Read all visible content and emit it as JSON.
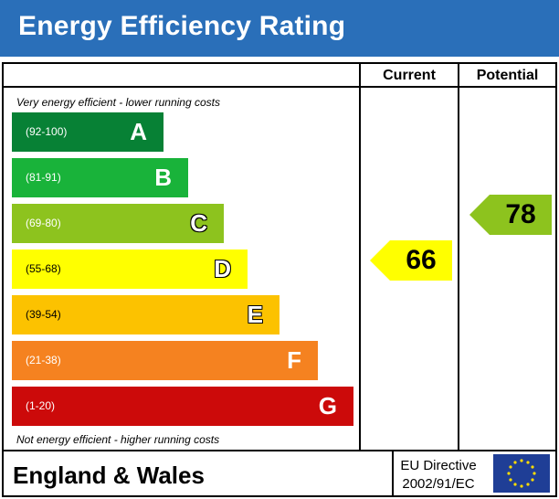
{
  "header": {
    "title": "Energy Efficiency Rating"
  },
  "columns": {
    "current": "Current",
    "potential": "Potential"
  },
  "notes": {
    "top": "Very energy efficient - lower running costs",
    "bottom": "Not energy efficient - higher running costs"
  },
  "bands": [
    {
      "letter": "A",
      "range": "(92-100)",
      "color": "#078135"
    },
    {
      "letter": "B",
      "range": "(81-91)",
      "color": "#19b33a"
    },
    {
      "letter": "C",
      "range": "(69-80)",
      "color": "#8dc31e"
    },
    {
      "letter": "D",
      "range": "(55-68)",
      "color": "#ffff00"
    },
    {
      "letter": "E",
      "range": "(39-54)",
      "color": "#fcc200"
    },
    {
      "letter": "F",
      "range": "(21-38)",
      "color": "#f58220"
    },
    {
      "letter": "G",
      "range": "(1-20)",
      "color": "#cc0a0a"
    }
  ],
  "ratings": {
    "current": {
      "value": "66",
      "band": "D",
      "color": "#ffff00"
    },
    "potential": {
      "value": "78",
      "band": "C",
      "color": "#8dc31e"
    }
  },
  "footer": {
    "region": "England & Wales",
    "directive_line1": "EU Directive",
    "directive_line2": "2002/91/EC",
    "flag_icon": "eu-flag-icon"
  }
}
